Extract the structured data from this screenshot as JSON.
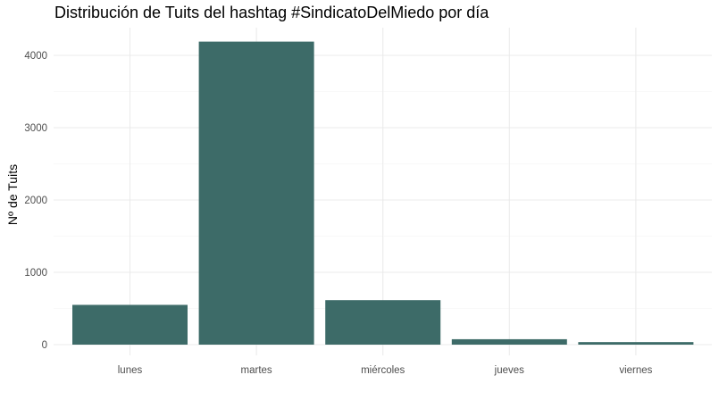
{
  "chart_data": {
    "type": "bar",
    "title": "Distribución de Tuits del hashtag #SindicatoDelMiedo por día",
    "xlabel": "",
    "ylabel": "Nº de Tuits",
    "categories": [
      "lunes",
      "martes",
      "miércoles",
      "jueves",
      "viernes"
    ],
    "values": [
      550,
      4190,
      615,
      75,
      35
    ],
    "ylim": [
      0,
      4400
    ],
    "yticks": [
      0,
      1000,
      2000,
      3000,
      4000
    ],
    "grid": true,
    "bar_color": "#3d6b68"
  }
}
